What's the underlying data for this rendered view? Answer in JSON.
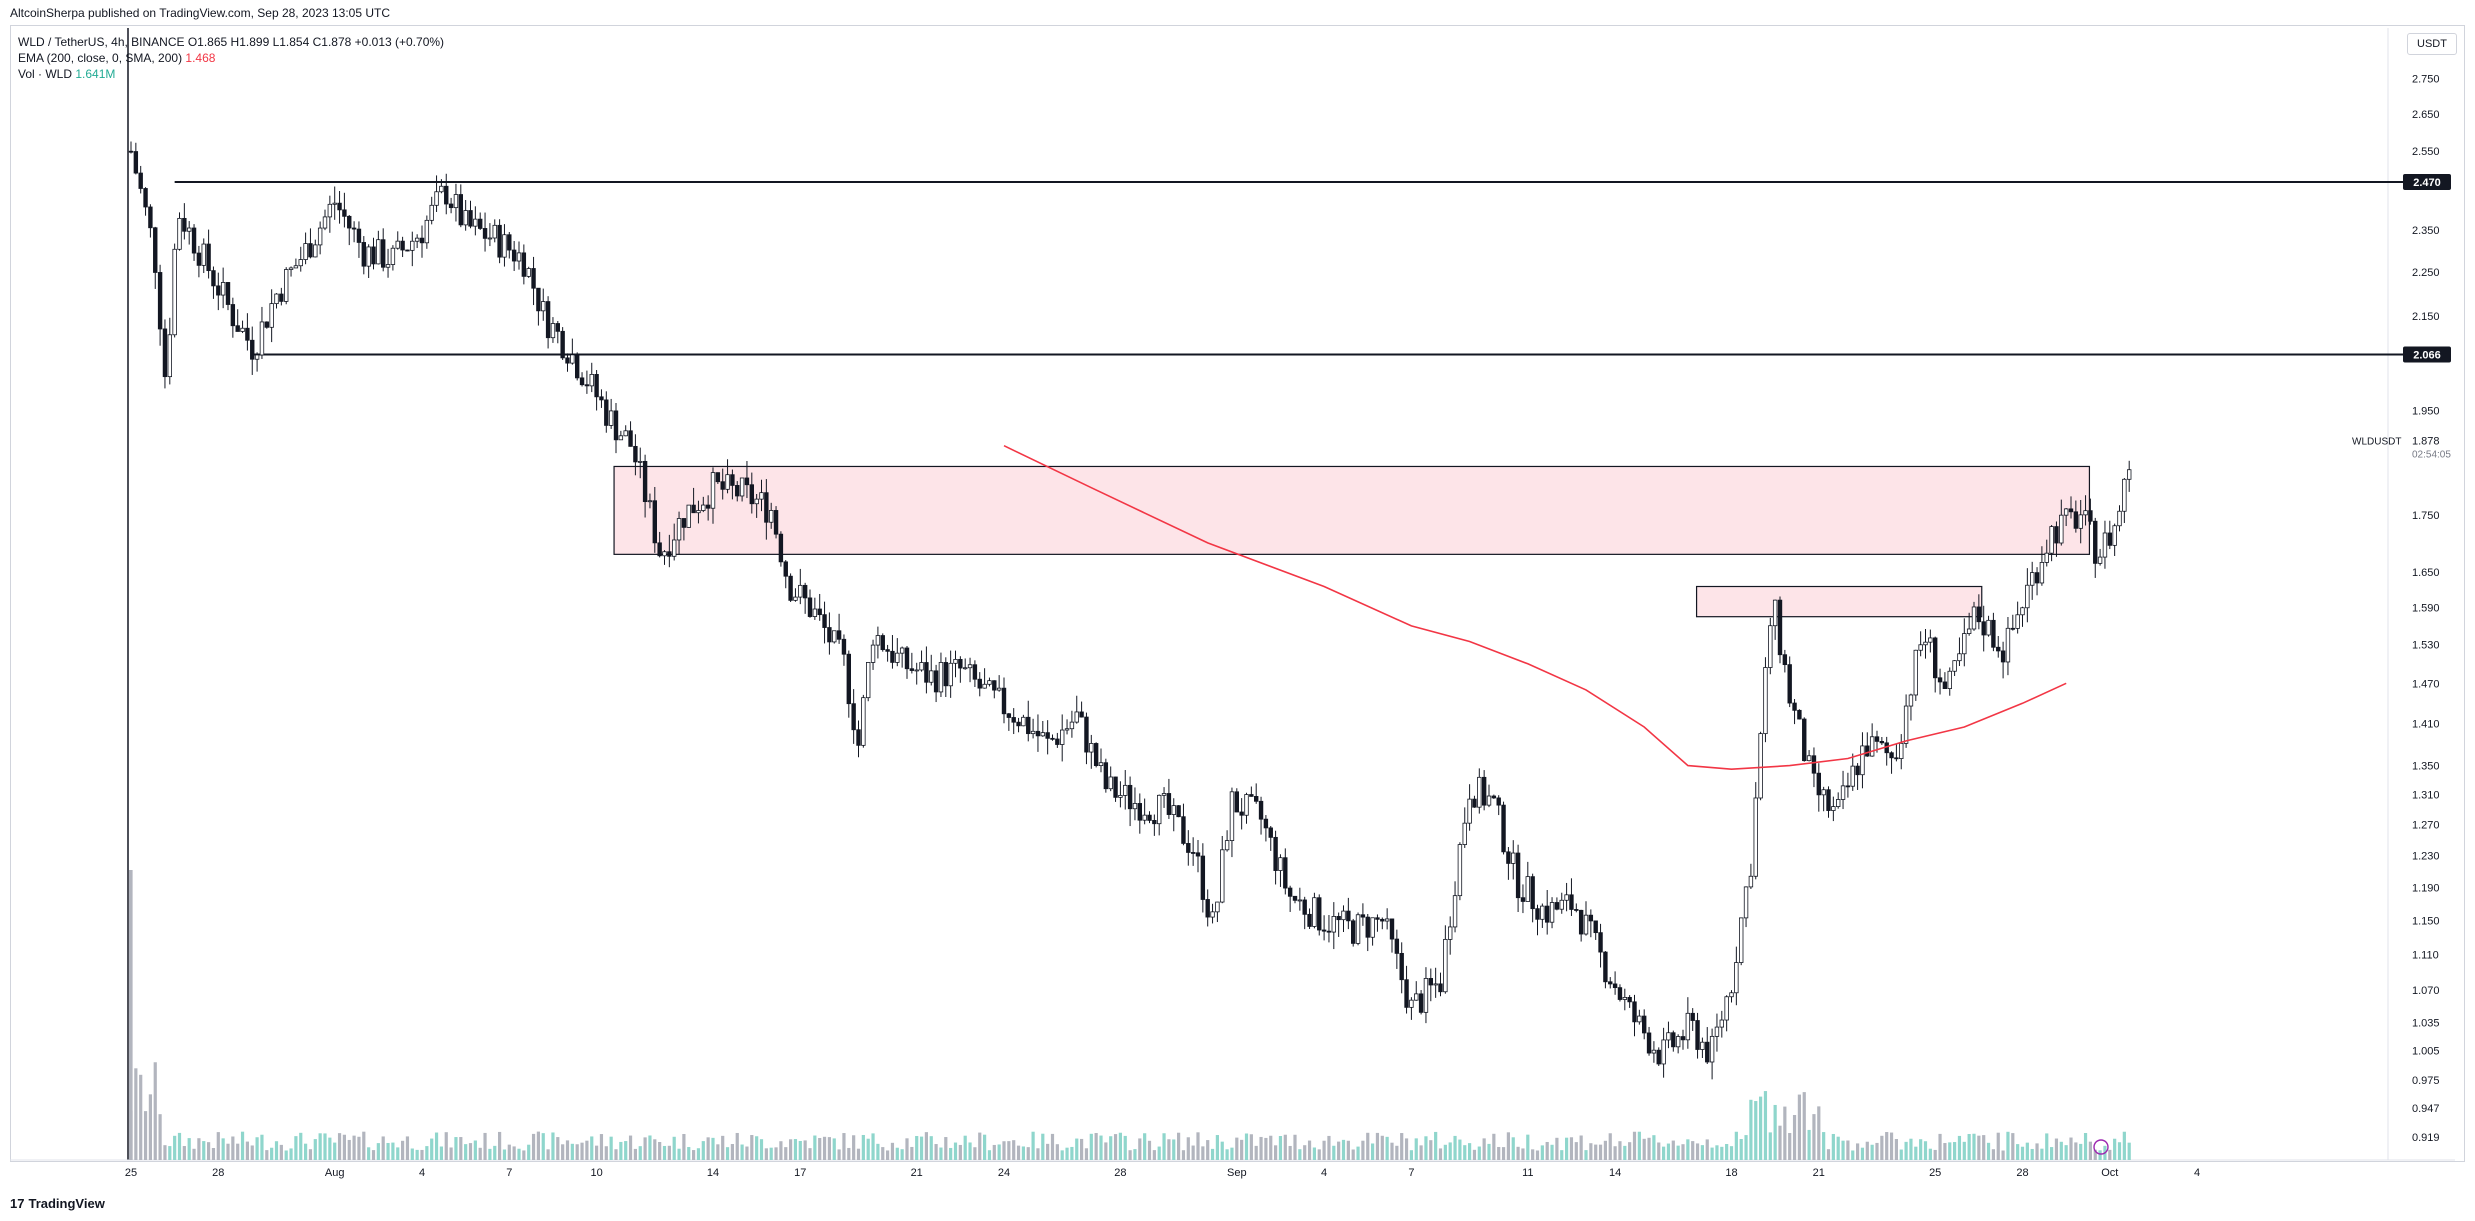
{
  "header": {
    "publisher": "AltcoinSherpa published on TradingView.com, Sep 28, 2023 13:05 UTC"
  },
  "legend": {
    "symbol": "WLD / TetherUS, 4h, BINANCE",
    "ohlc": "O1.865 H1.899 L1.854 C1.878 +0.013 (+0.70%)",
    "ema_label": "EMA (200, close, 0, SMA, 200)",
    "ema_value": "1.468",
    "vol_label": "Vol · WLD",
    "vol_value": "1.641M"
  },
  "currency": "USDT",
  "footer": {
    "logo_text": "TradingView",
    "logo_mark": "17"
  },
  "price_labels": {
    "symbol": "WLDUSDT",
    "last": "1.878",
    "countdown": "02:54:05",
    "level_high": "2.470",
    "level_low": "2.066"
  },
  "colors": {
    "up": "#22ab94",
    "down": "#131722",
    "ema": "#f23645",
    "zone_fill": "#fde4e8",
    "vol_up": "#8fd6cc",
    "vol_down": "#b2b5be",
    "grid_text": "#131722"
  },
  "chart_data": {
    "type": "candlestick",
    "title": "",
    "timeframe": "4h",
    "y_axis": {
      "ticks": [
        "2.750",
        "2.650",
        "2.550",
        "2.470",
        "2.350",
        "2.250",
        "2.150",
        "2.066",
        "1.950",
        "1.878",
        "1.750",
        "1.650",
        "1.590",
        "1.530",
        "1.470",
        "1.410",
        "1.350",
        "1.310",
        "1.270",
        "1.230",
        "1.190",
        "1.150",
        "1.110",
        "1.070",
        "1.035",
        "1.005",
        "0.975",
        "0.947",
        "0.919"
      ],
      "ylim": [
        0.9,
        2.8
      ],
      "scale": "log"
    },
    "x_axis": {
      "ticks": [
        "25",
        "28",
        "Aug",
        "4",
        "7",
        "10",
        "14",
        "17",
        "21",
        "24",
        "28",
        "Sep",
        "4",
        "7",
        "11",
        "14",
        "18",
        "21",
        "25",
        "28",
        "Oct",
        "4"
      ]
    },
    "horizontal_levels": [
      {
        "value": 2.47,
        "label": "2.470",
        "from_day": 1.5
      },
      {
        "value": 2.066,
        "label": "2.066",
        "from_day": 4.2
      }
    ],
    "zones": [
      {
        "from_day": 16.6,
        "to_day": 67.3,
        "y_low": 1.68,
        "y_high": 1.84
      },
      {
        "from_day": 53.8,
        "to_day": 63.6,
        "y_low": 1.575,
        "y_high": 1.625
      }
    ],
    "ema": {
      "label": "EMA (200, close, 0, SMA, 200)",
      "points": [
        [
          30.0,
          1.88
        ],
        [
          33.0,
          1.8
        ],
        [
          37.0,
          1.7
        ],
        [
          41.0,
          1.625
        ],
        [
          44.0,
          1.56
        ],
        [
          46.0,
          1.535
        ],
        [
          48.0,
          1.5
        ],
        [
          50.0,
          1.46
        ],
        [
          52.0,
          1.405
        ],
        [
          53.5,
          1.35
        ],
        [
          55.0,
          1.345
        ],
        [
          57.0,
          1.35
        ],
        [
          59.0,
          1.36
        ],
        [
          61.0,
          1.385
        ],
        [
          63.0,
          1.405
        ],
        [
          65.0,
          1.44
        ],
        [
          66.5,
          1.47
        ]
      ]
    },
    "price_path": [
      [
        0.0,
        2.55
      ],
      [
        0.8,
        2.3
      ],
      [
        1.2,
        2.0
      ],
      [
        1.6,
        2.4
      ],
      [
        2.5,
        2.28
      ],
      [
        3.5,
        2.15
      ],
      [
        4.2,
        2.08
      ],
      [
        5.0,
        2.2
      ],
      [
        6.0,
        2.3
      ],
      [
        7.0,
        2.42
      ],
      [
        8.0,
        2.3
      ],
      [
        9.0,
        2.28
      ],
      [
        10.0,
        2.35
      ],
      [
        10.8,
        2.45
      ],
      [
        11.5,
        2.36
      ],
      [
        12.5,
        2.33
      ],
      [
        13.5,
        2.28
      ],
      [
        14.2,
        2.15
      ],
      [
        15.0,
        2.08
      ],
      [
        15.8,
        2.0
      ],
      [
        16.5,
        1.93
      ],
      [
        17.2,
        1.88
      ],
      [
        17.8,
        1.76
      ],
      [
        18.2,
        1.68
      ],
      [
        19.0,
        1.75
      ],
      [
        20.0,
        1.8
      ],
      [
        21.0,
        1.79
      ],
      [
        22.0,
        1.76
      ],
      [
        22.6,
        1.63
      ],
      [
        23.5,
        1.58
      ],
      [
        24.5,
        1.5
      ],
      [
        25.0,
        1.38
      ],
      [
        25.5,
        1.55
      ],
      [
        26.5,
        1.5
      ],
      [
        27.5,
        1.48
      ],
      [
        28.5,
        1.49
      ],
      [
        29.5,
        1.45
      ],
      [
        30.5,
        1.42
      ],
      [
        31.5,
        1.38
      ],
      [
        32.5,
        1.42
      ],
      [
        33.5,
        1.32
      ],
      [
        34.5,
        1.3
      ],
      [
        35.5,
        1.29
      ],
      [
        36.5,
        1.24
      ],
      [
        37.2,
        1.14
      ],
      [
        37.8,
        1.3
      ],
      [
        38.8,
        1.28
      ],
      [
        39.8,
        1.18
      ],
      [
        41.0,
        1.15
      ],
      [
        42.0,
        1.14
      ],
      [
        43.0,
        1.15
      ],
      [
        44.0,
        1.05
      ],
      [
        45.0,
        1.08
      ],
      [
        46.0,
        1.32
      ],
      [
        46.8,
        1.3
      ],
      [
        47.6,
        1.2
      ],
      [
        48.6,
        1.16
      ],
      [
        49.6,
        1.17
      ],
      [
        50.6,
        1.1
      ],
      [
        51.6,
        1.04
      ],
      [
        52.6,
        1.0
      ],
      [
        53.6,
        1.03
      ],
      [
        54.3,
        1.0
      ],
      [
        55.0,
        1.08
      ],
      [
        55.7,
        1.23
      ],
      [
        56.4,
        1.6
      ],
      [
        57.0,
        1.45
      ],
      [
        57.8,
        1.32
      ],
      [
        58.6,
        1.28
      ],
      [
        59.6,
        1.38
      ],
      [
        60.6,
        1.36
      ],
      [
        61.6,
        1.55
      ],
      [
        62.4,
        1.45
      ],
      [
        63.4,
        1.58
      ],
      [
        64.4,
        1.52
      ],
      [
        65.0,
        1.6
      ],
      [
        66.0,
        1.72
      ],
      [
        67.0,
        1.75
      ],
      [
        67.6,
        1.68
      ],
      [
        68.2,
        1.73
      ],
      [
        68.8,
        1.88
      ]
    ]
  }
}
